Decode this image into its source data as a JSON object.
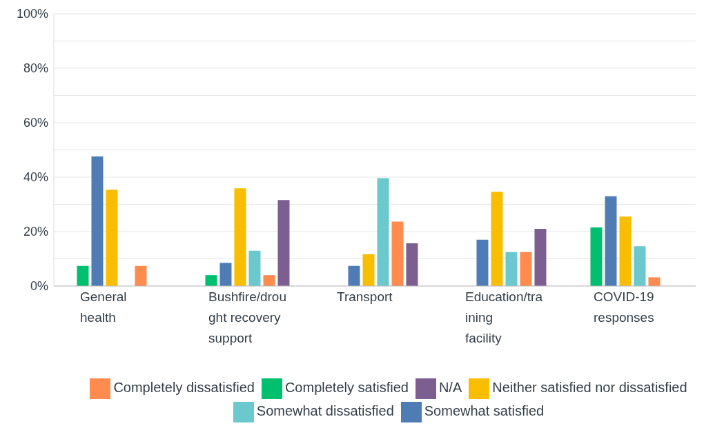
{
  "chart_data": {
    "type": "bar",
    "categories": [
      "General health",
      "Bushfire/drought recovery support",
      "Transport",
      "Education/training facility",
      "COVID-19 responses"
    ],
    "series": [
      {
        "name": "Completely satisfied",
        "color": "#00bf6f",
        "values": [
          7.4,
          4,
          0,
          0,
          21.5
        ]
      },
      {
        "name": "Somewhat satisfied",
        "color": "#507cb6",
        "values": [
          47.6,
          8.5,
          7.4,
          17,
          33
        ]
      },
      {
        "name": "Neither satisfied nor dissatisfied",
        "color": "#f9be00",
        "values": [
          35.4,
          35.9,
          11.7,
          34.6,
          25.5
        ]
      },
      {
        "name": "Somewhat dissatisfied",
        "color": "#6bc8cd",
        "values": [
          0,
          13,
          39.6,
          12.5,
          14.6
        ]
      },
      {
        "name": "Completely dissatisfied",
        "color": "#ff8b4f",
        "values": [
          7.4,
          4,
          23.7,
          12.5,
          3.2
        ]
      },
      {
        "name": "N/A",
        "color": "#7d5e90",
        "values": [
          0,
          31.6,
          15.7,
          21,
          0
        ]
      }
    ],
    "ylim": [
      0,
      100
    ],
    "yticks": [
      {
        "value": 0,
        "label": "0%"
      },
      {
        "value": 10,
        "label": null
      },
      {
        "value": 20,
        "label": "20%"
      },
      {
        "value": 30,
        "label": null
      },
      {
        "value": 40,
        "label": "40%"
      },
      {
        "value": 50,
        "label": null
      },
      {
        "value": 60,
        "label": "60%"
      },
      {
        "value": 70,
        "label": null
      },
      {
        "value": 80,
        "label": "80%"
      },
      {
        "value": 90,
        "label": null
      },
      {
        "value": 100,
        "label": "100%"
      }
    ],
    "grid": "y",
    "legend": "bottom"
  }
}
